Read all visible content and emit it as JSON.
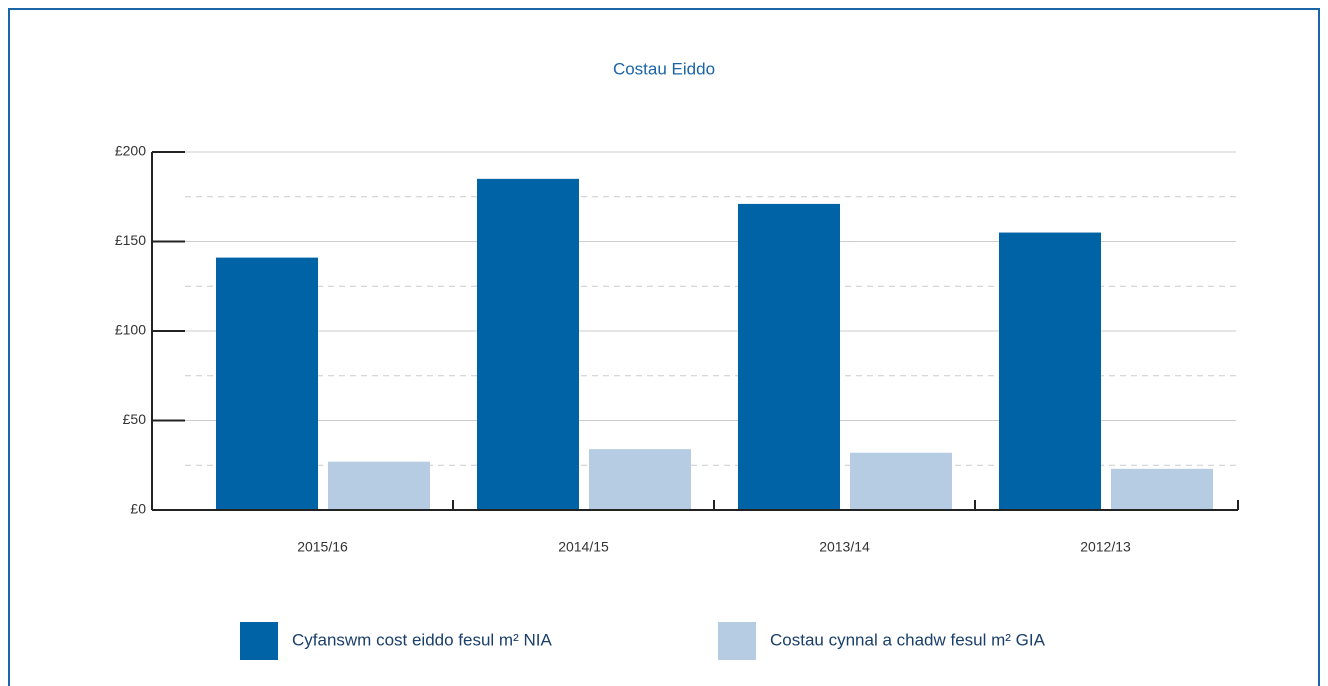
{
  "chart_data": {
    "type": "bar",
    "title": "Costau Eiddo",
    "categories": [
      "2015/16",
      "2014/15",
      "2013/14",
      "2012/13"
    ],
    "series": [
      {
        "name": "Cyfanswm cost eiddo fesul m² NIA",
        "color": "#0063a6",
        "values": [
          141,
          185,
          171,
          155
        ]
      },
      {
        "name": "Costau cynnal a chadw fesul m² GIA",
        "color": "#b5cce2",
        "values": [
          27,
          34,
          32,
          23
        ]
      }
    ],
    "ylim": [
      0,
      200
    ],
    "yticks": [
      {
        "value": 0,
        "label": "£0"
      },
      {
        "value": 50,
        "label": "£50"
      },
      {
        "value": 100,
        "label": "£100"
      },
      {
        "value": 150,
        "label": "£150"
      },
      {
        "value": 200,
        "label": "£200"
      }
    ],
    "minor_yticks": [
      25,
      75,
      125,
      175
    ],
    "grid": true,
    "legend": "bottom"
  }
}
